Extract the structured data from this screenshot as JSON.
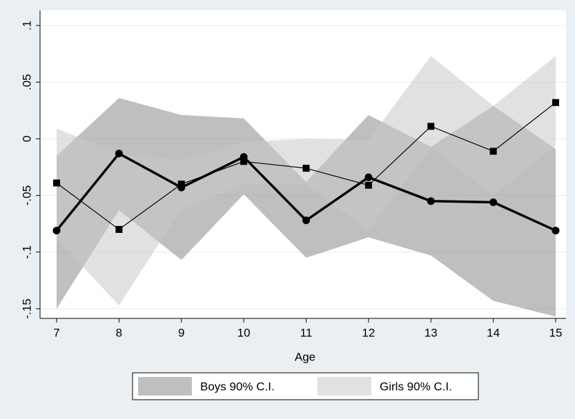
{
  "chart_data": {
    "type": "band-line",
    "x_label": "Age",
    "x": [
      7,
      8,
      9,
      10,
      11,
      12,
      13,
      14,
      15
    ],
    "xlim": [
      7,
      15
    ],
    "xticks": [
      7,
      8,
      9,
      10,
      11,
      12,
      13,
      14,
      15
    ],
    "ylim": [
      -0.15,
      0.1
    ],
    "yticks": [
      {
        "value": -0.15,
        "label": "-.15"
      },
      {
        "value": -0.1,
        "label": "-.1"
      },
      {
        "value": -0.05,
        "label": "-.05"
      },
      0,
      {
        "value": 0.05,
        "label": ".05"
      },
      {
        "value": 0.1,
        "label": ".1"
      }
    ],
    "grid": true,
    "legend": "bottom",
    "bands": [
      {
        "name": "Boys 90% C.I.",
        "color": "#8a8a8a",
        "upper": [
          -0.015,
          0.036,
          0.021,
          0.018,
          -0.038,
          0.021,
          -0.007,
          0.029,
          -0.009
        ],
        "lower": [
          -0.15,
          -0.063,
          -0.107,
          -0.049,
          -0.105,
          -0.087,
          -0.103,
          -0.143,
          -0.157
        ]
      },
      {
        "name": "Girls 90% C.I.",
        "color": "#c8c8c8",
        "upper": [
          0.009,
          -0.013,
          -0.019,
          -0.003,
          0.0,
          -0.001,
          0.073,
          0.029,
          0.073
        ],
        "lower": [
          -0.088,
          -0.147,
          -0.062,
          -0.04,
          -0.04,
          -0.081,
          -0.008,
          -0.05,
          -0.006
        ]
      }
    ],
    "series": [
      {
        "color": "#000000",
        "marker": "circle",
        "line_width": 3.5,
        "values": [
          -0.081,
          -0.013,
          -0.043,
          -0.016,
          -0.072,
          -0.034,
          -0.055,
          -0.056,
          -0.081
        ]
      },
      {
        "color": "#000000",
        "marker": "square",
        "line_width": 1.2,
        "values": [
          -0.039,
          -0.08,
          -0.04,
          -0.02,
          -0.026,
          -0.041,
          0.011,
          -0.011,
          0.032
        ]
      }
    ]
  }
}
